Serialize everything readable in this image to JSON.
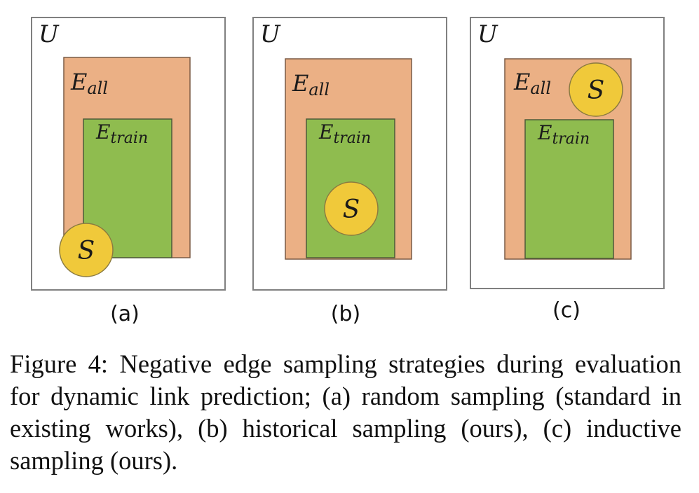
{
  "colors": {
    "universe_fill": "#ffffff",
    "universe_stroke": "#808080",
    "e_all_fill": "#ebb085",
    "e_all_stroke": "#7a5a45",
    "e_train_fill": "#8fbc4f",
    "e_train_stroke": "#4d5a3a",
    "sample_fill": "#f0c93a",
    "sample_stroke": "#8a7a40"
  },
  "symbols": {
    "universe": "U",
    "e_all_base": "E",
    "e_all_sub": "all",
    "e_train_base": "E",
    "e_train_sub": "train",
    "sample": "S"
  },
  "panels": [
    {
      "label": "(a)",
      "sample_position": "bottom-left corner, overlapping E_train, E_all and U"
    },
    {
      "label": "(b)",
      "sample_position": "inside E_train"
    },
    {
      "label": "(c)",
      "sample_position": "inside E_all, outside E_train"
    }
  ],
  "caption": {
    "figure_label": "Figure 4:",
    "text": "Negative edge sampling strategies during evaluation for dynamic link prediction; (a) random sampling (standard in existing works), (b) historical sampling (ours), (c) inductive sampling (ours)."
  }
}
